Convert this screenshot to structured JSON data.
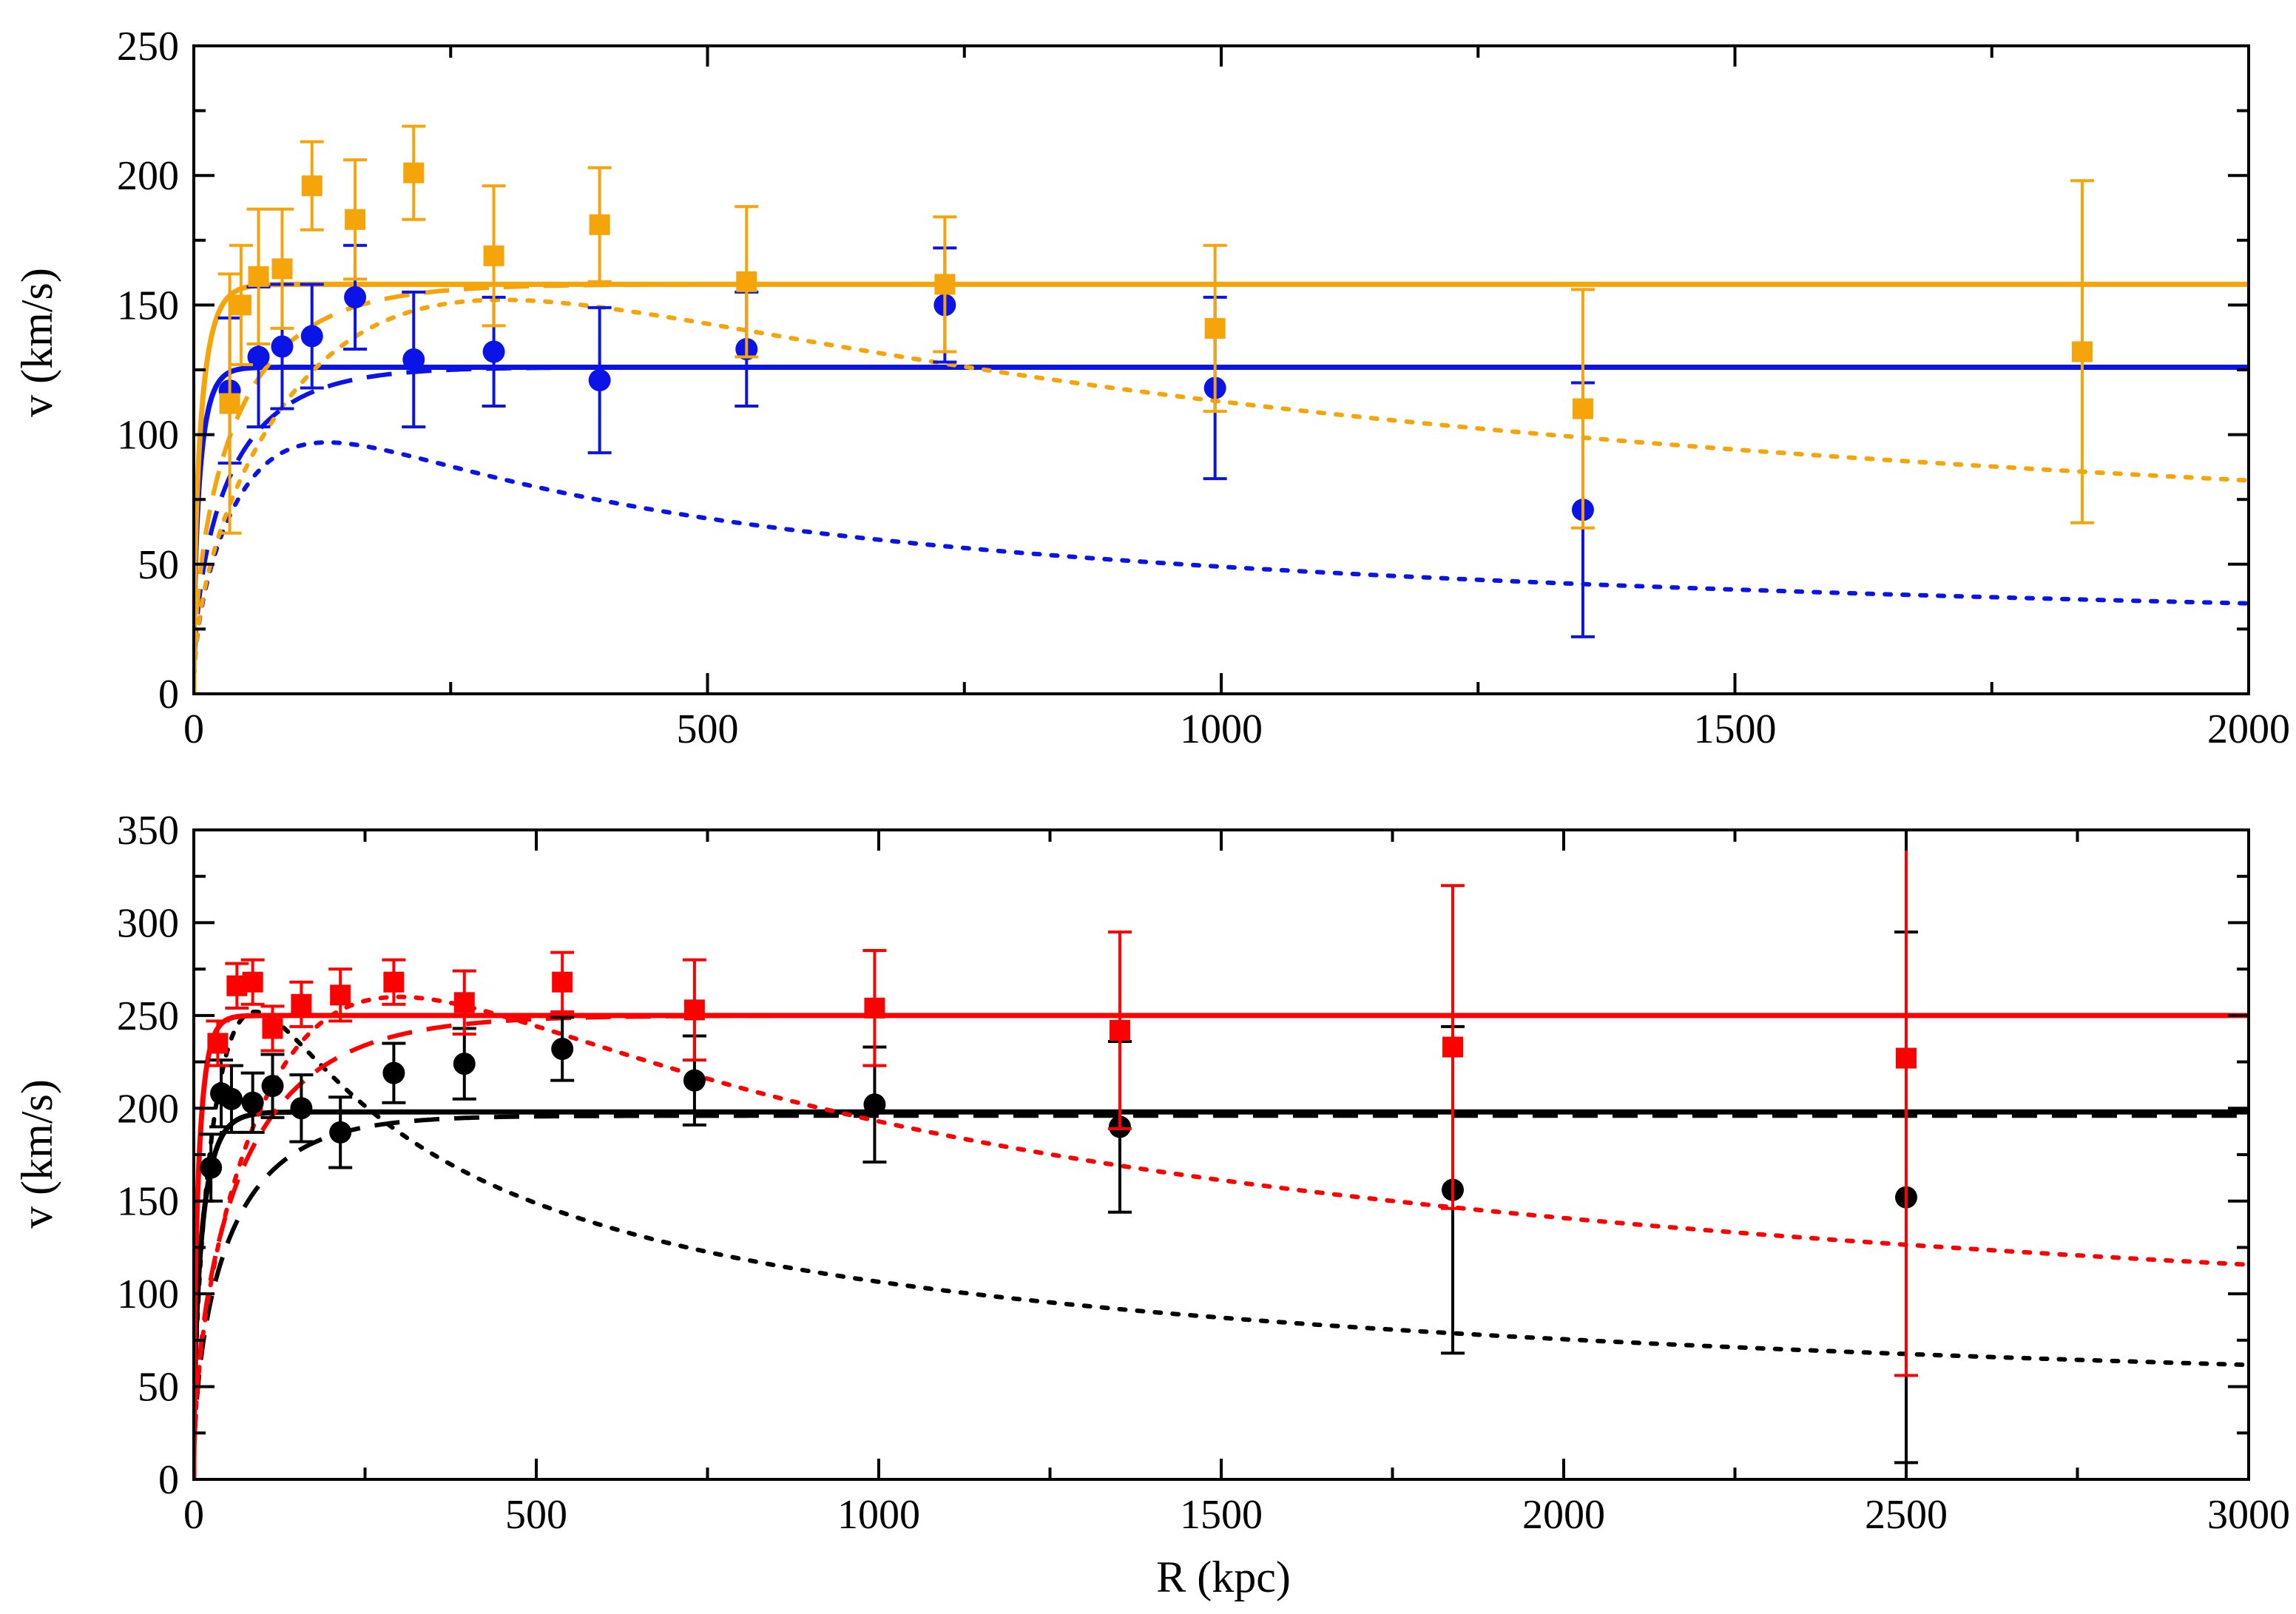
{
  "chart_data": [
    {
      "type": "scatter",
      "title": "",
      "xlabel": "",
      "ylabel": "v (km/s)",
      "xlim": [
        0,
        2000
      ],
      "ylim": [
        0,
        250
      ],
      "xticks": [
        0,
        500,
        1000,
        1500,
        2000
      ],
      "yticks": [
        0,
        50,
        100,
        150,
        200,
        250
      ],
      "x_minor": 250,
      "y_minor": 25,
      "series": [
        {
          "name": "blue-data",
          "color": "#0a14e6",
          "marker": "circle",
          "points": [
            {
              "x": 35,
              "y": 117,
              "err": 28
            },
            {
              "x": 63,
              "y": 130,
              "err": 27
            },
            {
              "x": 86,
              "y": 134,
              "err": 24
            },
            {
              "x": 115,
              "y": 138,
              "err": 20
            },
            {
              "x": 157,
              "y": 153,
              "err": 20
            },
            {
              "x": 214,
              "y": 129,
              "err": 26
            },
            {
              "x": 292,
              "y": 132,
              "err": 21
            },
            {
              "x": 395,
              "y": 121,
              "err": 28
            },
            {
              "x": 538,
              "y": 133,
              "err": 22
            },
            {
              "x": 731,
              "y": 150,
              "err": 22
            },
            {
              "x": 994,
              "y": 118,
              "err": 35
            },
            {
              "x": 1352,
              "y": 71,
              "err": 49
            }
          ]
        },
        {
          "name": "orange-data",
          "color": "#f5a50a",
          "marker": "square",
          "points": [
            {
              "x": 35,
              "y": 112,
              "err": 50
            },
            {
              "x": 46,
              "y": 150,
              "err": 23
            },
            {
              "x": 63,
              "y": 161,
              "err": 26
            },
            {
              "x": 86,
              "y": 164,
              "err": 23
            },
            {
              "x": 115,
              "y": 196,
              "err": 17
            },
            {
              "x": 157,
              "y": 183,
              "err": 23
            },
            {
              "x": 214,
              "y": 201,
              "err": 18
            },
            {
              "x": 292,
              "y": 169,
              "err": 27
            },
            {
              "x": 395,
              "y": 181,
              "err": 22
            },
            {
              "x": 538,
              "y": 159,
              "err": 29
            },
            {
              "x": 731,
              "y": 158,
              "err": 26
            },
            {
              "x": 994,
              "y": 141,
              "err": 32
            },
            {
              "x": 1352,
              "y": 110,
              "err": 46
            },
            {
              "x": 1838,
              "y": 132,
              "err": 66
            }
          ]
        }
      ],
      "models": [
        {
          "name": "blue-total",
          "color": "#0a14e6",
          "style": "solid",
          "kind": "total",
          "vflat": 126,
          "a": 10
        },
        {
          "name": "blue-halo",
          "color": "#0a14e6",
          "style": "dashed",
          "kind": "halo",
          "vflat": 126,
          "a": 60
        },
        {
          "name": "blue-baryon",
          "color": "#0a14e6",
          "style": "dotted",
          "kind": "baryon",
          "vmax": 97,
          "rmax": 130
        },
        {
          "name": "orange-total",
          "color": "#f5a50a",
          "style": "solid",
          "kind": "total",
          "vflat": 158,
          "a": 12
        },
        {
          "name": "orange-halo",
          "color": "#f5a50a",
          "style": "dashed",
          "kind": "halo",
          "vflat": 158,
          "a": 70
        },
        {
          "name": "orange-baryon",
          "color": "#f5a50a",
          "style": "dotted",
          "kind": "baryon",
          "vmax": 152,
          "rmax": 300
        }
      ]
    },
    {
      "type": "scatter",
      "title": "",
      "xlabel": "R (kpc)",
      "ylabel": "v (km/s)",
      "xlim": [
        0,
        3000
      ],
      "ylim": [
        0,
        350
      ],
      "xticks": [
        0,
        500,
        1000,
        1500,
        2000,
        2500,
        3000
      ],
      "yticks": [
        0,
        50,
        100,
        150,
        200,
        250,
        300,
        350
      ],
      "x_minor": 250,
      "y_minor": 25,
      "series": [
        {
          "name": "black-data",
          "color": "#000000",
          "marker": "circle",
          "points": [
            {
              "x": 25,
              "y": 168,
              "err": 18
            },
            {
              "x": 40,
              "y": 208,
              "err": 18
            },
            {
              "x": 55,
              "y": 205,
              "err": 18
            },
            {
              "x": 86,
              "y": 203,
              "err": 16
            },
            {
              "x": 115,
              "y": 212,
              "err": 17
            },
            {
              "x": 157,
              "y": 200,
              "err": 18
            },
            {
              "x": 214,
              "y": 187,
              "err": 19
            },
            {
              "x": 292,
              "y": 219,
              "err": 16
            },
            {
              "x": 395,
              "y": 224,
              "err": 19
            },
            {
              "x": 538,
              "y": 232,
              "err": 17
            },
            {
              "x": 731,
              "y": 215,
              "err": 24
            },
            {
              "x": 994,
              "y": 202,
              "err": 31
            },
            {
              "x": 1352,
              "y": 190,
              "err": 46
            },
            {
              "x": 1838,
              "y": 156,
              "err": 88
            },
            {
              "x": 2500,
              "y": 152,
              "err": 143
            }
          ]
        },
        {
          "name": "red-data",
          "color": "#ff0000",
          "marker": "square",
          "points": [
            {
              "x": 35,
              "y": 235,
              "err": 12
            },
            {
              "x": 63,
              "y": 266,
              "err": 12
            },
            {
              "x": 86,
              "y": 268,
              "err": 12
            },
            {
              "x": 115,
              "y": 243,
              "err": 12
            },
            {
              "x": 157,
              "y": 256,
              "err": 12
            },
            {
              "x": 214,
              "y": 261,
              "err": 14
            },
            {
              "x": 292,
              "y": 268,
              "err": 12
            },
            {
              "x": 395,
              "y": 257,
              "err": 17
            },
            {
              "x": 538,
              "y": 268,
              "err": 16
            },
            {
              "x": 731,
              "y": 253,
              "err": 27
            },
            {
              "x": 994,
              "y": 254,
              "err": 31
            },
            {
              "x": 1352,
              "y": 242,
              "err": 53
            },
            {
              "x": 1838,
              "y": 233,
              "err": 87
            },
            {
              "x": 2500,
              "y": 227,
              "err": 171
            }
          ]
        }
      ],
      "models": [
        {
          "name": "black-total",
          "color": "#000000",
          "style": "solid",
          "kind": "total",
          "vflat": 198,
          "a": 20
        },
        {
          "name": "black-halo",
          "color": "#000000",
          "style": "dashed",
          "kind": "halo",
          "vflat": 196,
          "a": 90
        },
        {
          "name": "black-baryon",
          "color": "#000000",
          "style": "dotted",
          "kind": "baryon",
          "vmax": 252,
          "rmax": 90
        },
        {
          "name": "red-total",
          "color": "#ff0000",
          "style": "solid",
          "kind": "total",
          "vflat": 250,
          "a": 12
        },
        {
          "name": "red-halo",
          "color": "#ff0000",
          "style": "dashed",
          "kind": "halo",
          "vflat": 250,
          "a": 120
        },
        {
          "name": "red-baryon",
          "color": "#ff0000",
          "style": "dotted",
          "kind": "baryon",
          "vmax": 260,
          "rmax": 300
        }
      ]
    }
  ]
}
